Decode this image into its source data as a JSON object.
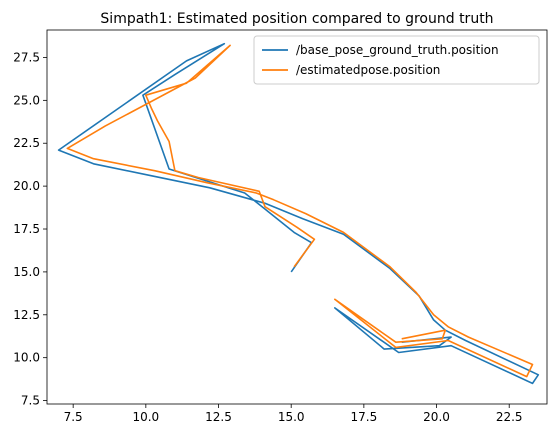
{
  "chart_data": {
    "type": "line",
    "title": "Simpath1: Estimated position compared to ground truth",
    "xlabel": "",
    "ylabel": "",
    "xlim": [
      6.6,
      23.8
    ],
    "ylim": [
      7.3,
      29.1
    ],
    "xticks": [
      7.5,
      10.0,
      12.5,
      15.0,
      17.5,
      20.0,
      22.5
    ],
    "xtick_labels": [
      "7.5",
      "10.0",
      "12.5",
      "15.0",
      "17.5",
      "20.0",
      "22.5"
    ],
    "yticks": [
      7.5,
      10.0,
      12.5,
      15.0,
      17.5,
      20.0,
      22.5,
      25.0,
      27.5
    ],
    "ytick_labels": [
      "7.5",
      "10.0",
      "12.5",
      "15.0",
      "17.5",
      "20.0",
      "22.5",
      "25.0",
      "27.5"
    ],
    "grid": false,
    "legend_position": "top-right",
    "series": [
      {
        "name": "/base_pose_ground_truth.position",
        "color": "#1f77b4",
        "x": [
          15.0,
          15.7,
          15.1,
          14.0,
          13.4,
          10.8,
          9.9,
          11.0,
          12.7,
          11.4,
          7.0,
          8.2,
          10.2,
          12.2,
          14.1,
          15.4,
          16.8,
          18.4,
          19.4,
          19.9,
          20.3,
          21.0,
          23.5,
          23.3,
          20.5,
          18.7,
          16.5,
          18.2,
          20.1,
          20.5,
          18.8
        ],
        "y": [
          15.0,
          16.7,
          17.3,
          18.8,
          19.6,
          21.0,
          25.3,
          26.5,
          28.3,
          27.3,
          22.1,
          21.3,
          20.6,
          19.9,
          19.0,
          18.1,
          17.2,
          15.2,
          13.6,
          12.2,
          11.6,
          11.0,
          9.0,
          8.5,
          10.7,
          10.3,
          12.9,
          10.5,
          10.7,
          11.2,
          10.9
        ]
      },
      {
        "name": "/estimatedpose.position",
        "color": "#ff7f0e",
        "x": [
          15.1,
          15.8,
          15.2,
          14.1,
          13.9,
          11.8,
          11.0,
          10.8,
          10.4,
          10.2,
          10.0,
          11.4,
          12.9,
          11.7,
          8.6,
          7.3,
          8.2,
          10.3,
          12.1,
          13.8,
          14.4,
          15.5,
          16.8,
          18.4,
          19.3,
          19.9,
          20.4,
          21.1,
          23.3,
          23.1,
          20.4,
          18.6,
          16.5,
          18.6,
          20.2,
          20.3,
          18.8
        ],
        "y": [
          15.3,
          16.9,
          17.6,
          18.8,
          19.7,
          20.5,
          20.9,
          22.6,
          23.8,
          24.5,
          25.3,
          26.0,
          28.2,
          26.3,
          23.5,
          22.2,
          21.6,
          20.9,
          20.2,
          19.6,
          19.2,
          18.4,
          17.3,
          15.3,
          13.8,
          12.5,
          11.8,
          11.2,
          9.6,
          8.9,
          11.0,
          10.6,
          13.4,
          10.9,
          11.1,
          11.6,
          11.1
        ]
      }
    ]
  }
}
